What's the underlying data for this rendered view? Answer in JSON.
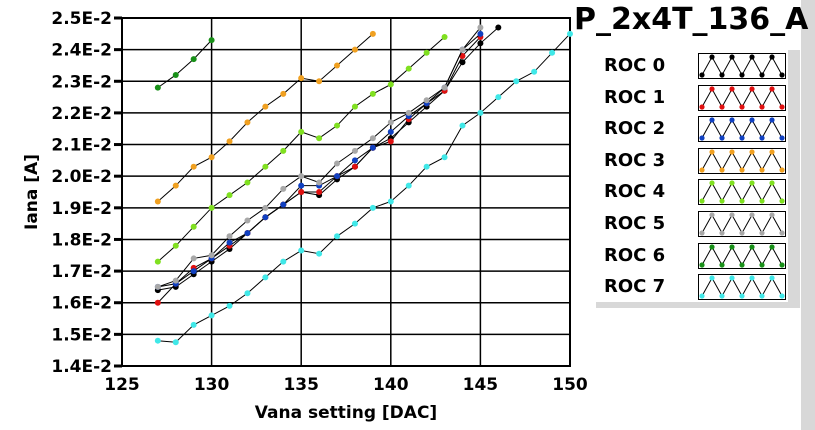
{
  "title": "P_2x4T_136_A",
  "chart_data": {
    "type": "line",
    "title": "P_2x4T_136_A",
    "xlabel": "Vana setting [DAC]",
    "ylabel": "Iana [A]",
    "xlim": [
      125,
      150
    ],
    "ylim": [
      0.014,
      0.025
    ],
    "xticks": [
      125,
      130,
      135,
      140,
      145,
      150
    ],
    "xtick_labels": [
      "125",
      "130",
      "135",
      "140",
      "145",
      "150"
    ],
    "yticks": [
      0.014,
      0.015,
      0.016,
      0.017,
      0.018,
      0.019,
      0.02,
      0.021,
      0.022,
      0.023,
      0.024,
      0.025
    ],
    "ytick_labels": [
      "1.4E-2",
      "1.5E-2",
      "1.6E-2",
      "1.7E-2",
      "1.8E-2",
      "1.9E-2",
      "2.0E-2",
      "2.1E-2",
      "2.2E-2",
      "2.3E-2",
      "2.4E-2",
      "2.5E-2"
    ],
    "grid": true,
    "legend_placement": "right",
    "series": [
      {
        "name": "ROC 0",
        "color": "#000000",
        "x0": 127,
        "values": [
          1.64,
          1.65,
          1.69,
          1.73,
          1.77,
          1.82,
          1.87,
          1.91,
          1.95,
          1.94,
          1.99,
          2.03,
          2.09,
          2.12,
          2.17,
          2.22,
          2.27,
          2.36,
          2.42,
          2.47
        ]
      },
      {
        "name": "ROC 1",
        "color": "#e01010",
        "x0": 127,
        "values": [
          1.6,
          1.66,
          1.71,
          1.74,
          1.78,
          1.82,
          1.87,
          1.91,
          1.95,
          1.95,
          2.0,
          2.03,
          2.09,
          2.11,
          2.18,
          2.23,
          2.27,
          2.38,
          2.44
        ]
      },
      {
        "name": "ROC 2",
        "color": "#1040c0",
        "x0": 127,
        "values": [
          1.65,
          1.66,
          1.7,
          1.74,
          1.79,
          1.82,
          1.87,
          1.91,
          1.97,
          1.97,
          2.0,
          2.05,
          2.09,
          2.14,
          2.19,
          2.23,
          2.28,
          2.4,
          2.45
        ]
      },
      {
        "name": "ROC 3",
        "color": "#f0a020",
        "x0": 127,
        "values": [
          1.92,
          1.97,
          2.03,
          2.06,
          2.11,
          2.17,
          2.22,
          2.26,
          2.31,
          2.3,
          2.35,
          2.4,
          2.45
        ]
      },
      {
        "name": "ROC 4",
        "color": "#80e020",
        "x0": 127,
        "values": [
          1.73,
          1.78,
          1.84,
          1.9,
          1.94,
          1.98,
          2.03,
          2.08,
          2.14,
          2.12,
          2.16,
          2.22,
          2.26,
          2.29,
          2.34,
          2.39,
          2.44
        ]
      },
      {
        "name": "ROC 5",
        "color": "#a8a8a8",
        "x0": 127,
        "values": [
          1.65,
          1.67,
          1.74,
          1.75,
          1.81,
          1.86,
          1.9,
          1.96,
          2.0,
          1.98,
          2.04,
          2.08,
          2.12,
          2.17,
          2.2,
          2.24,
          2.28,
          2.4,
          2.47
        ]
      },
      {
        "name": "ROC 6",
        "color": "#189018",
        "x0": 127,
        "values": [
          2.28,
          2.32,
          2.37,
          2.43
        ]
      },
      {
        "name": "ROC 7",
        "color": "#40e8e8",
        "x0": 127,
        "values": [
          1.48,
          1.475,
          1.53,
          1.56,
          1.59,
          1.63,
          1.68,
          1.73,
          1.765,
          1.755,
          1.81,
          1.85,
          1.9,
          1.92,
          1.97,
          2.03,
          2.06,
          2.16,
          2.2,
          2.25,
          2.3,
          2.33,
          2.39,
          2.45
        ]
      }
    ],
    "value_unit_scale": "values in E-2"
  }
}
